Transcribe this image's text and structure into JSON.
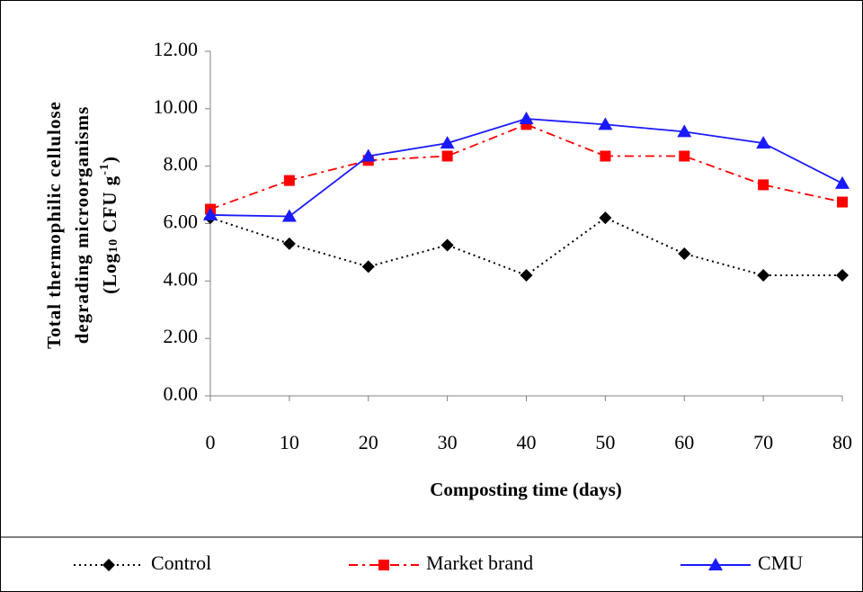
{
  "chart_data": {
    "type": "line",
    "xlabel": "Composting time (days)",
    "ylabel": [
      "Total thermophilic cellulose",
      "degrading microorganisms",
      [
        "(Log",
        "10",
        " CFU g",
        "-1",
        ")"
      ]
    ],
    "x": [
      0,
      10,
      20,
      30,
      40,
      50,
      60,
      70,
      80
    ],
    "xlim": [
      0,
      80
    ],
    "xticks": [
      0,
      10,
      20,
      30,
      40,
      50,
      60,
      70,
      80
    ],
    "ylim": [
      0,
      12
    ],
    "yticks": [
      {
        "value": 0,
        "label": "0.00"
      },
      {
        "value": 2,
        "label": "2.00"
      },
      {
        "value": 4,
        "label": "4.00"
      },
      {
        "value": 6,
        "label": "6.00"
      },
      {
        "value": 8,
        "label": "8.00"
      },
      {
        "value": 10,
        "label": "10.00"
      },
      {
        "value": 12,
        "label": "12.00"
      }
    ],
    "legend": "bottom",
    "series": [
      {
        "name": "Control",
        "color": "#000000",
        "line_style": "dotted",
        "marker": "diamond",
        "values": [
          6.2,
          5.3,
          4.5,
          5.25,
          4.2,
          6.2,
          4.95,
          4.2,
          4.2
        ]
      },
      {
        "name": "Market brand",
        "color": "#ff0000",
        "line_style": "dashdot",
        "marker": "square",
        "values": [
          6.5,
          7.5,
          8.2,
          8.35,
          9.45,
          8.35,
          8.35,
          7.35,
          6.75
        ]
      },
      {
        "name": "CMU",
        "color": "#1a1aff",
        "line_style": "solid",
        "marker": "triangle",
        "values": [
          6.3,
          6.25,
          8.35,
          8.8,
          9.65,
          9.45,
          9.2,
          8.8,
          7.4
        ]
      }
    ]
  }
}
